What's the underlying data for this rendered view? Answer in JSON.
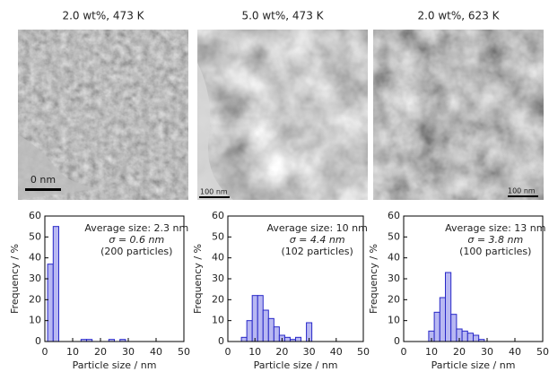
{
  "images": [
    {
      "title": "2.0 wt%, 473 K",
      "scale_bar": "0 nm"
    },
    {
      "title": "5.0 wt%, 473 K",
      "scale_bar": "100 nm"
    },
    {
      "title": "2.0 wt%, 623 K",
      "scale_bar": "100 nm"
    }
  ],
  "chart_data": [
    {
      "type": "histogram",
      "xlabel": "Particle size / nm",
      "ylabel": "Frequency / %",
      "annotations": [
        "Average size: 2.3 nm",
        "σ = 0.6 nm",
        "(200 particles)"
      ],
      "bins": [
        1,
        3,
        5,
        7,
        9,
        11,
        13,
        15,
        17,
        19,
        21,
        23,
        25,
        27,
        29,
        31,
        33,
        35,
        37,
        39,
        41,
        43,
        45,
        47,
        49
      ],
      "values": [
        37,
        55,
        0,
        0,
        0,
        0,
        1,
        1,
        0,
        0,
        0,
        1,
        0,
        1,
        0,
        0,
        0,
        0,
        0,
        0,
        0,
        0,
        0,
        0
      ],
      "color": "#b8b8f2",
      "edgecolor": "#2828c8",
      "xlim": [
        0,
        50
      ],
      "xticks": [
        0,
        10,
        20,
        30,
        40,
        50
      ],
      "ylim": [
        0,
        60
      ],
      "yticks": [
        0,
        10,
        20,
        30,
        40,
        50,
        60
      ]
    },
    {
      "type": "histogram",
      "xlabel": "Particle size / nm",
      "ylabel": "Frequency / %",
      "annotations": [
        "Average size: 10 nm",
        "σ = 4.4 nm",
        "(102 particles)"
      ],
      "bins": [
        1,
        3,
        5,
        7,
        9,
        11,
        13,
        15,
        17,
        19,
        21,
        23,
        25,
        27,
        29,
        31,
        33,
        35,
        37,
        39,
        41,
        43,
        45,
        47,
        49
      ],
      "values": [
        0,
        0,
        2,
        10,
        22,
        22,
        15,
        11,
        7,
        3,
        2,
        1,
        2,
        0,
        9,
        0,
        0,
        0,
        0,
        0,
        0,
        0,
        0,
        0
      ],
      "color": "#b8b8f2",
      "edgecolor": "#2828c8",
      "xlim": [
        0,
        50
      ],
      "xticks": [
        0,
        10,
        20,
        30,
        40,
        50
      ],
      "ylim": [
        0,
        60
      ],
      "yticks": [
        0,
        10,
        20,
        30,
        40,
        50,
        60
      ]
    },
    {
      "type": "histogram",
      "xlabel": "Particle size / nm",
      "ylabel": "Frequency / %",
      "annotations": [
        "Average size: 13 nm",
        "σ = 3.8 nm",
        "(100 particles)"
      ],
      "bins": [
        1,
        3,
        5,
        7,
        9,
        11,
        13,
        15,
        17,
        19,
        21,
        23,
        25,
        27,
        29,
        31,
        33,
        35,
        37,
        39,
        41,
        43,
        45,
        47,
        49
      ],
      "values": [
        0,
        0,
        0,
        0,
        5,
        14,
        21,
        33,
        13,
        6,
        5,
        4,
        3,
        1,
        0,
        0,
        0,
        0,
        0,
        0,
        0,
        0,
        0,
        0
      ],
      "color": "#b8b8f2",
      "edgecolor": "#2828c8",
      "xlim": [
        0,
        50
      ],
      "xticks": [
        0,
        10,
        20,
        30,
        40,
        50
      ],
      "ylim": [
        0,
        60
      ],
      "yticks": [
        0,
        10,
        20,
        30,
        40,
        50,
        60
      ]
    }
  ]
}
